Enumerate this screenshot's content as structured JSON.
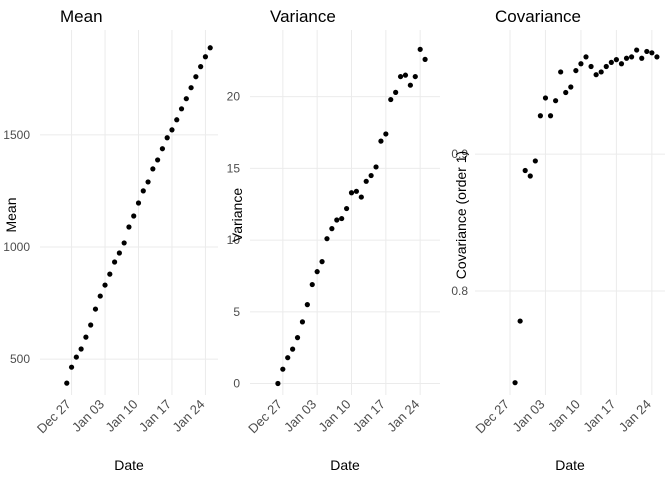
{
  "chart_data": [
    {
      "type": "scatter",
      "title": "Mean",
      "x_label": "Date",
      "y_label": "Mean",
      "color": "#000000",
      "grid": true,
      "x": [
        "Dec 26",
        "Dec 27",
        "Dec 28",
        "Dec 29",
        "Dec 30",
        "Dec 31",
        "Jan 01",
        "Jan 02",
        "Jan 03",
        "Jan 04",
        "Jan 05",
        "Jan 06",
        "Jan 07",
        "Jan 08",
        "Jan 09",
        "Jan 10",
        "Jan 11",
        "Jan 12",
        "Jan 13",
        "Jan 14",
        "Jan 15",
        "Jan 16",
        "Jan 17",
        "Jan 18",
        "Jan 19",
        "Jan 20",
        "Jan 21",
        "Jan 22",
        "Jan 23",
        "Jan 24",
        "Jan 25"
      ],
      "values": [
        393,
        464,
        509,
        545,
        598,
        652,
        723,
        781,
        830,
        879,
        933,
        973,
        1018,
        1089,
        1138,
        1196,
        1250,
        1290,
        1348,
        1388,
        1438,
        1487,
        1522,
        1567,
        1616,
        1661,
        1710,
        1759,
        1804,
        1848,
        1888
      ],
      "xlim": [
        "Dec 25",
        "Jan 26"
      ],
      "xticks": [
        "Dec 27",
        "Jan 03",
        "Jan 10",
        "Jan 17",
        "Jan 24"
      ],
      "ylim": [
        340,
        1945
      ],
      "yticks": [
        500,
        1000,
        1500
      ]
    },
    {
      "type": "scatter",
      "title": "Variance",
      "x_label": "Date",
      "y_label": "Variance",
      "color": "#000000",
      "grid": true,
      "x": [
        "Dec 26",
        "Dec 27",
        "Dec 28",
        "Dec 29",
        "Dec 30",
        "Dec 31",
        "Jan 01",
        "Jan 02",
        "Jan 03",
        "Jan 04",
        "Jan 05",
        "Jan 06",
        "Jan 07",
        "Jan 08",
        "Jan 09",
        "Jan 10",
        "Jan 11",
        "Jan 12",
        "Jan 13",
        "Jan 14",
        "Jan 15",
        "Jan 16",
        "Jan 17",
        "Jan 18",
        "Jan 19",
        "Jan 20",
        "Jan 21",
        "Jan 22",
        "Jan 23",
        "Jan 24",
        "Jan 25"
      ],
      "values": [
        0,
        1.0,
        1.8,
        2.4,
        3.2,
        4.3,
        5.5,
        6.9,
        7.8,
        8.5,
        10.1,
        10.8,
        11.4,
        11.5,
        12.2,
        13.3,
        13.4,
        13.0,
        14.1,
        14.5,
        15.1,
        16.9,
        17.4,
        19.8,
        20.3,
        21.4,
        21.5,
        20.8,
        21.4,
        23.3,
        22.6
      ],
      "xlim": [
        "Dec 25",
        "Jan 26"
      ],
      "xticks": [
        "Dec 27",
        "Jan 03",
        "Jan 10",
        "Jan 17",
        "Jan 24"
      ],
      "ylim": [
        -0.8,
        24.3
      ],
      "yticks": [
        0,
        5,
        10,
        15,
        20
      ]
    },
    {
      "type": "scatter",
      "title": "Covariance",
      "x_label": "Date",
      "y_label": "Covariance (order 1)",
      "color": "#000000",
      "grid": true,
      "x": [
        "Dec 28",
        "Dec 29",
        "Dec 30",
        "Dec 31",
        "Jan 01",
        "Jan 02",
        "Jan 03",
        "Jan 04",
        "Jan 05",
        "Jan 06",
        "Jan 07",
        "Jan 08",
        "Jan 09",
        "Jan 10",
        "Jan 11",
        "Jan 12",
        "Jan 13",
        "Jan 14",
        "Jan 15",
        "Jan 16",
        "Jan 17",
        "Jan 18",
        "Jan 19",
        "Jan 20",
        "Jan 21",
        "Jan 22",
        "Jan 23",
        "Jan 24",
        "Jan 25"
      ],
      "values": [
        0.733,
        0.778,
        0.888,
        0.884,
        0.895,
        0.928,
        0.941,
        0.928,
        0.939,
        0.96,
        0.945,
        0.949,
        0.961,
        0.966,
        0.971,
        0.964,
        0.958,
        0.96,
        0.964,
        0.967,
        0.969,
        0.966,
        0.97,
        0.971,
        0.976,
        0.97,
        0.975,
        0.974,
        0.971
      ],
      "xlim": [
        "Dec 27",
        "Jan 26"
      ],
      "xticks": [
        "Dec 27",
        "Jan 03",
        "Jan 10",
        "Jan 17",
        "Jan 24"
      ],
      "ylim": [
        0.724,
        0.987
      ],
      "yticks": [
        0.8,
        0.9
      ]
    }
  ]
}
